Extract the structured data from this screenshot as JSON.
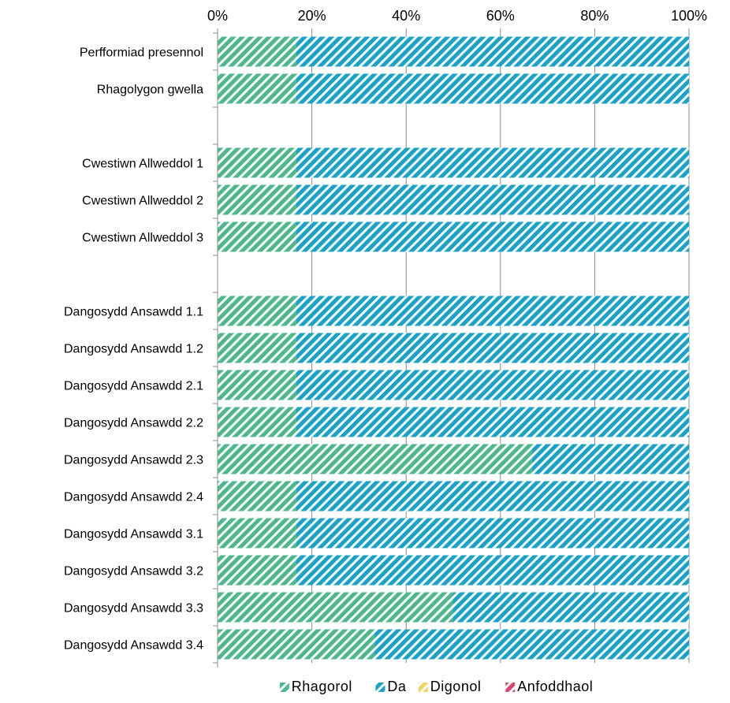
{
  "chart_data": {
    "type": "bar",
    "orientation": "horizontal",
    "stacked": "percent",
    "categories": [
      "Perfformiad presennol",
      "Rhagolygon gwella",
      "",
      "Cwestiwn Allweddol 1",
      "Cwestiwn Allweddol 2",
      "Cwestiwn Allweddol 3",
      "",
      "Dangosydd Ansawdd 1.1",
      "Dangosydd Ansawdd 1.2",
      "Dangosydd Ansawdd 2.1",
      "Dangosydd Ansawdd 2.2",
      "Dangosydd Ansawdd 2.3",
      "Dangosydd Ansawdd 2.4",
      "Dangosydd Ansawdd 3.1",
      "Dangosydd Ansawdd 3.2",
      "Dangosydd Ansawdd 3.3",
      "Dangosydd Ansawdd 3.4"
    ],
    "series": [
      {
        "name": "Rhagorol",
        "color": "#4cb88c",
        "values": [
          16.7,
          16.7,
          null,
          16.7,
          16.7,
          16.7,
          null,
          16.7,
          16.7,
          16.7,
          16.7,
          66.7,
          16.7,
          16.7,
          16.7,
          50,
          33.3
        ]
      },
      {
        "name": "Da",
        "color": "#1aa3c9",
        "values": [
          83.3,
          83.3,
          null,
          83.3,
          83.3,
          83.3,
          null,
          83.3,
          83.3,
          83.3,
          83.3,
          33.3,
          83.3,
          83.3,
          83.3,
          50,
          66.7
        ]
      },
      {
        "name": "Digonol",
        "color": "#f2d45c",
        "values": [
          0,
          0,
          null,
          0,
          0,
          0,
          null,
          0,
          0,
          0,
          0,
          0,
          0,
          0,
          0,
          0,
          0
        ]
      },
      {
        "name": "Anfoddhaol",
        "color": "#e0436b",
        "values": [
          0,
          0,
          null,
          0,
          0,
          0,
          null,
          0,
          0,
          0,
          0,
          0,
          0,
          0,
          0,
          0,
          0
        ]
      }
    ],
    "x_ticks": [
      "0%",
      "20%",
      "40%",
      "60%",
      "80%",
      "100%"
    ],
    "xlim": [
      0,
      100
    ],
    "x_axis_position": "top",
    "grid": "vertical",
    "legend_position": "bottom"
  }
}
